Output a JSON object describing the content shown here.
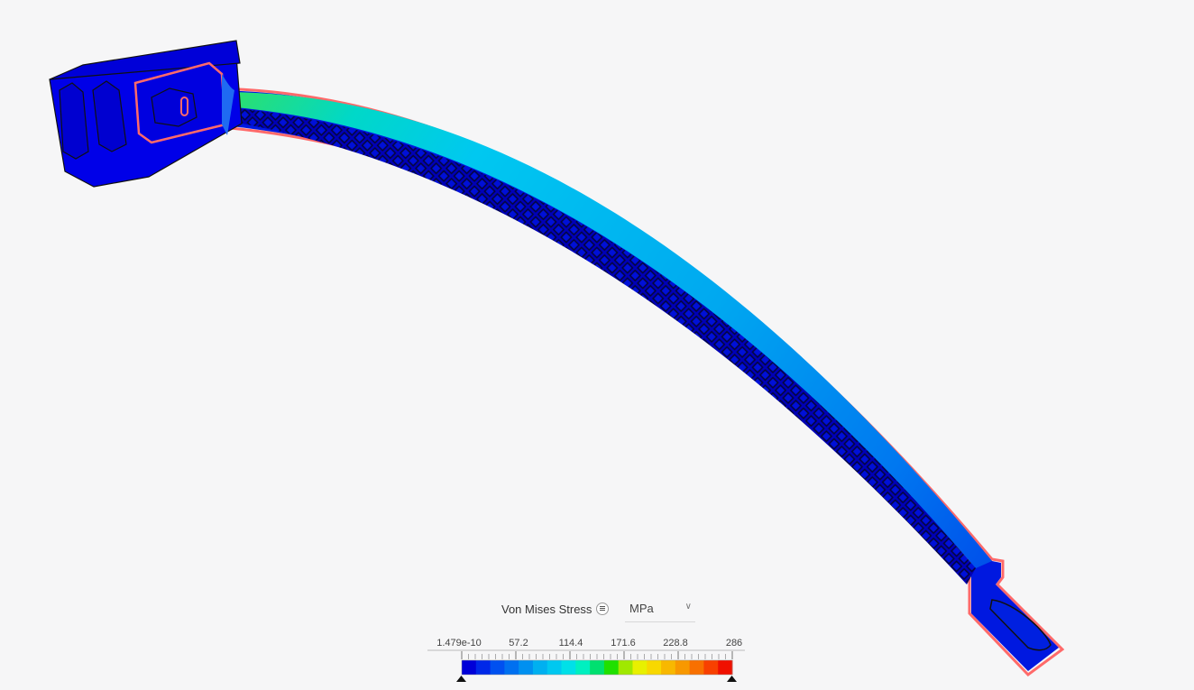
{
  "legend": {
    "title": "Von Mises Stress",
    "menu_icon": "list-icon",
    "unit": "MPa",
    "unit_chevron_icon": "chevron-down-icon",
    "tick_labels": [
      "1.479e-10",
      "57.2",
      "114.4",
      "171.6",
      "228.8",
      "286"
    ],
    "min_value": 1.479e-10,
    "max_value": 286,
    "colors": [
      "#0000d8",
      "#0028e8",
      "#0050f0",
      "#0070f0",
      "#0090f0",
      "#00b0f0",
      "#00c8f0",
      "#00e0e8",
      "#00f0c0",
      "#00e070",
      "#20e000",
      "#a0e800",
      "#e8f000",
      "#f8d800",
      "#f8b800",
      "#f89800",
      "#f87000",
      "#f84000",
      "#f01000"
    ]
  },
  "model": {
    "base_color": "#0000e0",
    "edge_color": "#ff6a6a",
    "outline_color": "#111111"
  }
}
